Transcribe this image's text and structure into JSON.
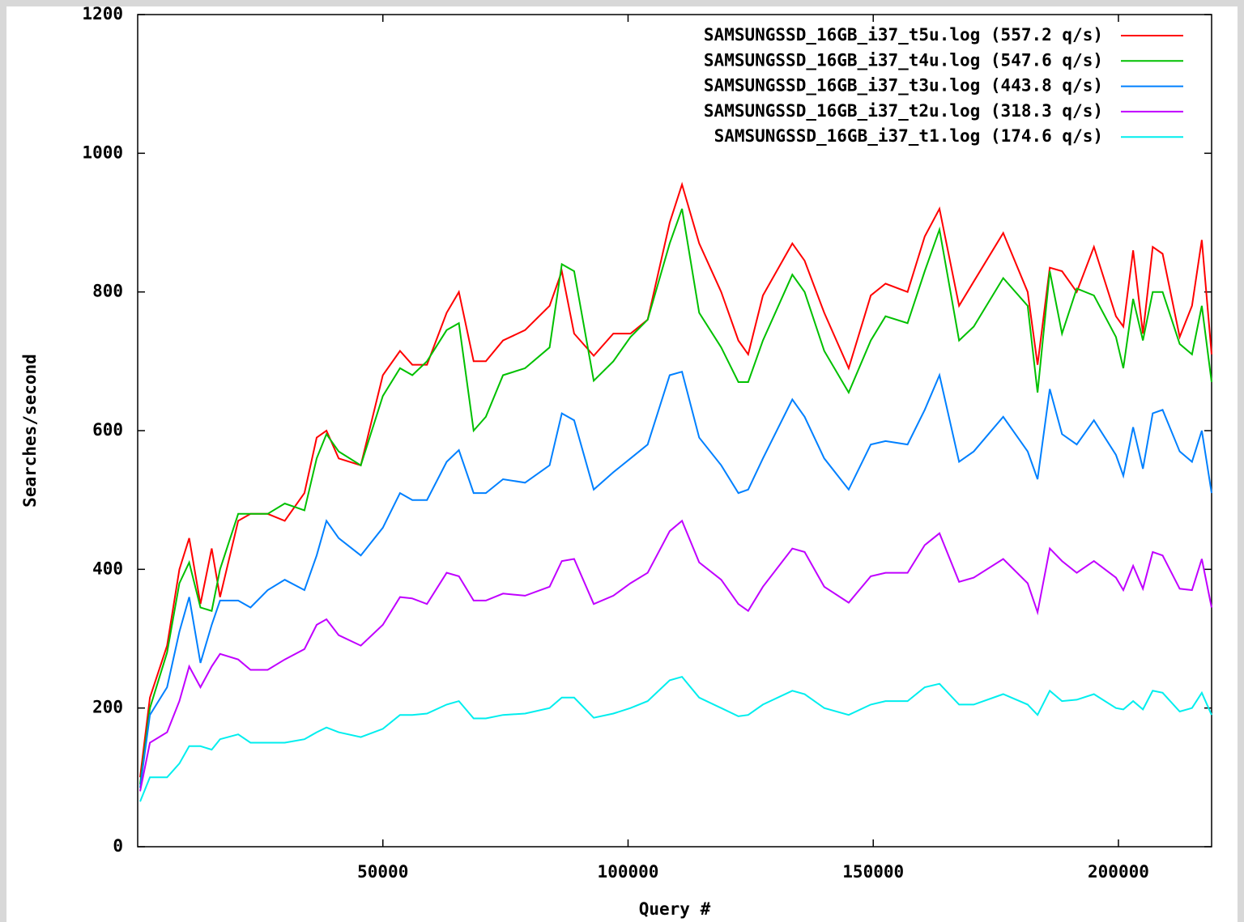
{
  "chart_data": {
    "type": "line",
    "x_label": "Query #",
    "y_label": "Searches/second",
    "x": [
      500,
      2500,
      6000,
      8500,
      10500,
      12800,
      15100,
      16800,
      20500,
      23000,
      26500,
      30000,
      34000,
      36500,
      38500,
      41000,
      45500,
      50000,
      53500,
      56000,
      59000,
      63000,
      65500,
      68500,
      71000,
      74500,
      79000,
      84000,
      86500,
      89000,
      93000,
      97000,
      100500,
      104000,
      108500,
      111000,
      114500,
      119000,
      122500,
      124500,
      127500,
      133500,
      136000,
      140000,
      145000,
      149500,
      152500,
      157000,
      160500,
      163500,
      167500,
      170500,
      176500,
      181500,
      183500,
      186000,
      188500,
      191500,
      195000,
      199500,
      201000,
      203000,
      205000,
      207000,
      209000,
      212500,
      215000,
      217000,
      219000
    ],
    "series": [
      {
        "name": "SAMSUNGSSD_16GB_i37_t5u.log (557.2 q/s)",
        "color": "#ff0000",
        "values": [
          100,
          215,
          290,
          400,
          445,
          350,
          430,
          360,
          470,
          480,
          480,
          470,
          510,
          590,
          600,
          560,
          550,
          680,
          715,
          695,
          695,
          770,
          800,
          700,
          700,
          730,
          745,
          780,
          830,
          740,
          708,
          740,
          740,
          760,
          900,
          955,
          870,
          800,
          730,
          710,
          795,
          870,
          845,
          770,
          690,
          795,
          812,
          800,
          880,
          920,
          780,
          815,
          885,
          800,
          695,
          835,
          830,
          800,
          865,
          765,
          750,
          860,
          740,
          865,
          855,
          735,
          780,
          875,
          710
        ]
      },
      {
        "name": "SAMSUNGSSD_16GB_i37_t4u.log (547.6 q/s)",
        "color": "#00c000",
        "values": [
          90,
          200,
          280,
          380,
          410,
          345,
          340,
          400,
          480,
          480,
          480,
          495,
          485,
          560,
          595,
          570,
          550,
          650,
          690,
          680,
          700,
          745,
          755,
          600,
          620,
          680,
          690,
          720,
          840,
          830,
          672,
          700,
          735,
          760,
          870,
          920,
          770,
          720,
          670,
          670,
          730,
          825,
          800,
          715,
          655,
          730,
          765,
          755,
          830,
          890,
          730,
          750,
          820,
          780,
          655,
          830,
          740,
          805,
          795,
          735,
          690,
          790,
          730,
          800,
          800,
          725,
          710,
          780,
          670
        ]
      },
      {
        "name": "SAMSUNGSSD_16GB_i37_t3u.log (443.8 q/s)",
        "color": "#0080ff",
        "values": [
          85,
          190,
          230,
          310,
          360,
          265,
          320,
          355,
          355,
          345,
          370,
          385,
          370,
          420,
          470,
          445,
          420,
          460,
          510,
          500,
          500,
          555,
          572,
          510,
          510,
          530,
          525,
          550,
          625,
          615,
          515,
          540,
          560,
          580,
          680,
          685,
          590,
          550,
          510,
          515,
          560,
          645,
          620,
          560,
          515,
          580,
          585,
          580,
          630,
          680,
          555,
          570,
          620,
          570,
          530,
          660,
          595,
          580,
          615,
          565,
          535,
          605,
          545,
          625,
          630,
          570,
          555,
          600,
          510
        ]
      },
      {
        "name": "SAMSUNGSSD_16GB_i37_t2u.log (318.3 q/s)",
        "color": "#c000ff",
        "values": [
          80,
          150,
          165,
          210,
          260,
          230,
          260,
          278,
          270,
          255,
          255,
          270,
          285,
          320,
          328,
          305,
          290,
          320,
          360,
          358,
          350,
          395,
          390,
          355,
          355,
          365,
          362,
          375,
          412,
          415,
          350,
          362,
          380,
          395,
          455,
          470,
          410,
          385,
          350,
          340,
          375,
          430,
          425,
          375,
          352,
          390,
          395,
          395,
          435,
          452,
          382,
          388,
          415,
          380,
          338,
          430,
          412,
          395,
          412,
          388,
          370,
          405,
          372,
          425,
          420,
          372,
          370,
          415,
          345
        ]
      },
      {
        "name": "SAMSUNGSSD_16GB_i37_t1.log (174.6 q/s)",
        "color": "#00eeee",
        "values": [
          65,
          100,
          100,
          120,
          145,
          145,
          140,
          155,
          162,
          150,
          150,
          150,
          155,
          165,
          172,
          165,
          158,
          170,
          190,
          190,
          192,
          205,
          210,
          185,
          185,
          190,
          192,
          200,
          215,
          215,
          186,
          192,
          200,
          210,
          240,
          245,
          215,
          200,
          188,
          190,
          205,
          225,
          220,
          200,
          190,
          205,
          210,
          210,
          230,
          235,
          205,
          205,
          220,
          205,
          190,
          225,
          210,
          212,
          220,
          200,
          198,
          210,
          198,
          225,
          222,
          195,
          200,
          222,
          190
        ]
      }
    ],
    "xlim": [
      0,
      219000
    ],
    "ylim": [
      0,
      1200
    ],
    "xticks": [
      50000,
      100000,
      150000,
      200000
    ],
    "yticks": [
      0,
      200,
      400,
      600,
      800,
      1000,
      1200
    ],
    "legend": "upper right"
  }
}
